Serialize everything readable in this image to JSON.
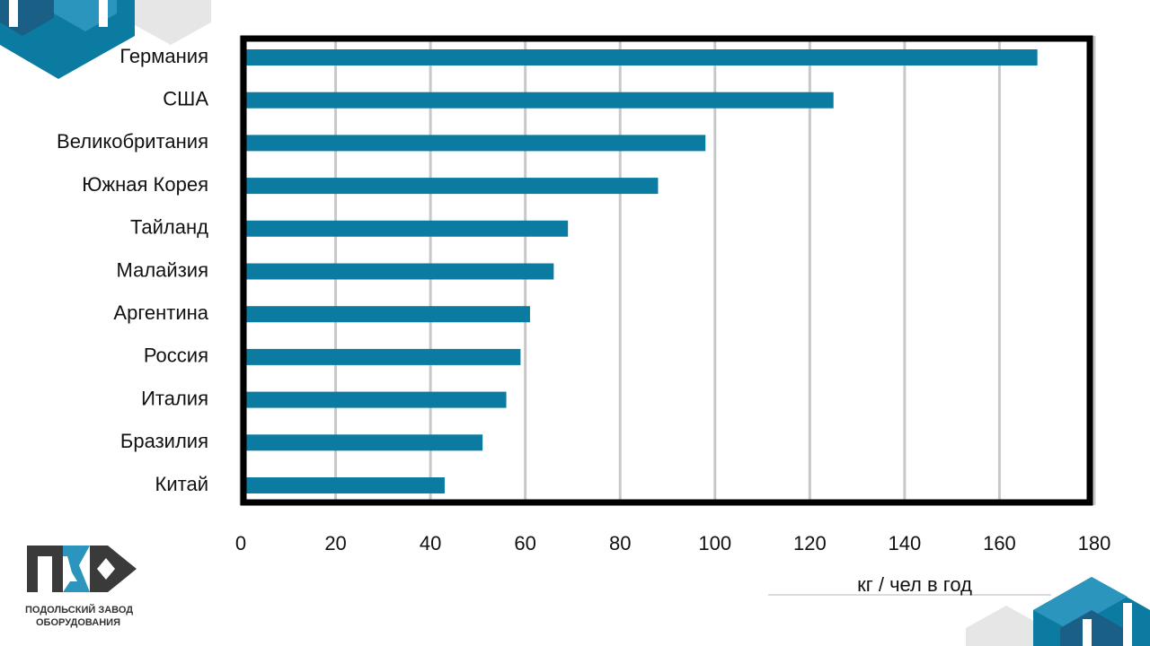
{
  "chart_data": {
    "type": "bar",
    "orientation": "horizontal",
    "categories": [
      "Германия",
      "США",
      "Великобритания",
      "Южная Корея",
      "Тайланд",
      "Малайзия",
      "Аргентина",
      "Россия",
      "Италия",
      "Бразилия",
      "Китай"
    ],
    "values": [
      168,
      125,
      98,
      88,
      69,
      66,
      61,
      59,
      56,
      51,
      43
    ],
    "color": "#0b7ba1",
    "xlabel": "кг / чел в год",
    "xlim": [
      0,
      180
    ],
    "xticks": [
      0,
      20,
      40,
      60,
      80,
      100,
      120,
      140,
      160,
      180
    ],
    "grid": true
  },
  "logo": {
    "lines": [
      "ПОДОЛЬСКИЙ ЗАВОД",
      "ОБОРУДОВАНИЯ"
    ]
  }
}
